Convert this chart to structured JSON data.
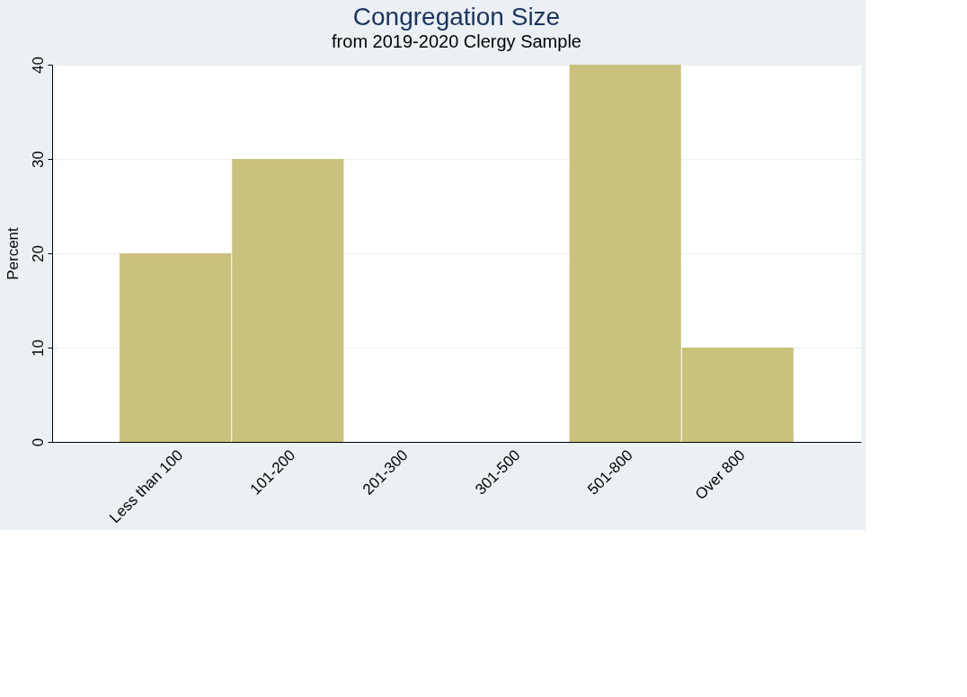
{
  "chart_data": {
    "type": "bar",
    "title": "Congregation Size",
    "subtitle": "from 2019-2020 Clergy Sample",
    "ylabel": "Percent",
    "categories": [
      "Less than 100",
      "101-200",
      "201-300",
      "301-500",
      "501-800",
      "Over 800"
    ],
    "values": [
      20,
      30,
      0,
      0,
      40,
      10
    ],
    "color": "#c9c17d",
    "ylim": [
      0,
      40
    ],
    "yticks": [
      0,
      10,
      20,
      30,
      40
    ],
    "grid": "y"
  }
}
